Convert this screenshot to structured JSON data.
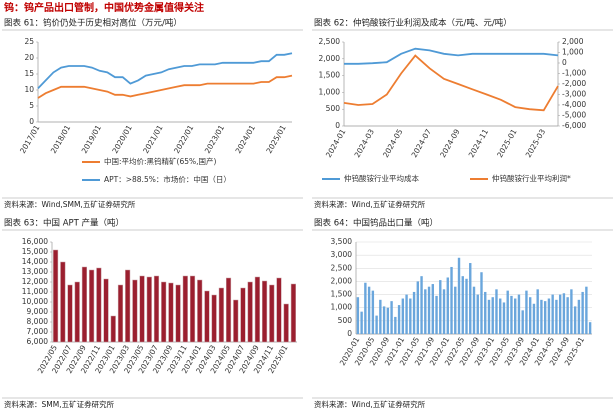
{
  "title": "钨：钨产品出口管制，中国优势金属值得关注",
  "chart_data": [
    {
      "type": "line",
      "title": "图表 61：钨价仍处于历史相对高位（万元/吨）",
      "source": "资料来源：Wind,SMM,五矿证券研究所",
      "categories": [
        "2017/01",
        null,
        null,
        null,
        "2018/01",
        null,
        null,
        null,
        "2019/01",
        null,
        null,
        null,
        "2020/01",
        null,
        null,
        null,
        "2021/01",
        null,
        null,
        null,
        "2022/01",
        null,
        null,
        null,
        "2023/01",
        null,
        null,
        null,
        "2024/01",
        null,
        null,
        null,
        "2025/01",
        null
      ],
      "series": [
        {
          "name": "中国:平均价:黑钨精矿(65%,国产)",
          "color": "#ed7d31",
          "values": [
            7.5,
            9,
            10,
            11,
            11,
            11,
            11,
            10.5,
            10,
            9.5,
            8.5,
            8.5,
            8,
            8.5,
            9,
            9.5,
            10,
            10.5,
            11,
            11.5,
            11.5,
            11.5,
            12,
            12,
            12,
            12,
            12,
            12,
            12,
            12.5,
            12.5,
            14,
            14,
            14.5
          ]
        },
        {
          "name": "APT：>88.5%：市场价：中国（日）",
          "color": "#4f9ad6",
          "values": [
            10.5,
            13,
            15.5,
            17,
            17.5,
            17.5,
            17.5,
            17,
            16,
            15.5,
            14,
            14,
            12,
            13,
            14.5,
            15,
            15.5,
            16.5,
            17,
            17.5,
            17.5,
            18,
            18,
            18,
            18.5,
            18.5,
            18.5,
            18.5,
            18.5,
            19,
            19,
            21,
            21,
            21.5
          ]
        }
      ],
      "ylim": [
        0,
        25
      ],
      "yticks": [
        0,
        5,
        10,
        15,
        20,
        25
      ],
      "grid": false
    },
    {
      "type": "line",
      "title": "图表 62：仲钨酸铵行业利润及成本（元/吨、元/吨）",
      "source": "资料来源：Wind,五矿证券研究所",
      "categories": [
        "2024-01",
        null,
        "2024-03",
        null,
        "2024-05",
        null,
        "2024-07",
        null,
        "2024-09",
        null,
        "2024-11",
        null,
        "2025-01",
        null,
        "2025-03",
        null
      ],
      "series": [
        {
          "name": "仲钨酸铵行业平均成本",
          "color": "#4f9ad6",
          "values": [
            1850,
            1850,
            1870,
            1900,
            2150,
            2300,
            2250,
            2150,
            2100,
            2150,
            2150,
            2150,
            2150,
            2150,
            2150,
            2100
          ]
        },
        {
          "name": "仲钨酸铵行业平均利润*",
          "color": "#ed7d31",
          "axis": "y2",
          "values": [
            -3800,
            -4000,
            -3900,
            -3000,
            -1000,
            700,
            -500,
            -1500,
            -2000,
            -2500,
            -3000,
            -3500,
            -4200,
            -4400,
            -4500,
            -2200
          ]
        }
      ],
      "ylim": [
        0,
        2500
      ],
      "yticks": [
        0,
        500,
        {
          "value": 1000,
          "label": "1,000"
        },
        {
          "value": 1500,
          "label": "1,500"
        },
        {
          "value": 2000,
          "label": "2,000"
        },
        {
          "value": 2500,
          "label": "2,500"
        }
      ],
      "y2lim": [
        -6000,
        2000
      ],
      "y2ticks": [
        {
          "value": -6000,
          "label": "-6,000"
        },
        {
          "value": -5000,
          "label": "-5,000"
        },
        {
          "value": -4000,
          "label": "-4,000"
        },
        {
          "value": -3000,
          "label": "-3,000"
        },
        {
          "value": -2000,
          "label": "-2,000"
        },
        {
          "value": -1000,
          "label": "-1,000"
        },
        0,
        {
          "value": 1000,
          "label": "1,000"
        },
        {
          "value": 2000,
          "label": "2,000"
        }
      ],
      "grid": false
    },
    {
      "type": "bar",
      "title": "图表 63：中国 APT 产量（吨）",
      "source": "资料来源：SMM,五矿证券研究所",
      "color": "#9b1f2f",
      "categories": [
        "2022/05",
        null,
        "2022/07",
        null,
        "2022/09",
        null,
        "2022/11",
        null,
        "2023/01",
        null,
        "2023/03",
        null,
        "2023/05",
        null,
        "2023/07",
        null,
        "2023/09",
        null,
        "2023/11",
        null,
        "2024/01",
        null,
        "2024/03",
        null,
        "2024/05",
        null,
        "2024/07",
        null,
        "2024/09",
        null,
        "2024/11",
        null,
        "2025/01",
        null
      ],
      "values": [
        15200,
        14000,
        11700,
        12000,
        13500,
        13200,
        13400,
        12300,
        8600,
        11700,
        13200,
        12200,
        12600,
        12500,
        12600,
        12000,
        11900,
        11700,
        12600,
        12600,
        12200,
        11100,
        10700,
        11400,
        12400,
        10200,
        11400,
        12000,
        12500,
        12100,
        11700,
        12400,
        9800,
        11800
      ],
      "ylim": [
        6000,
        16000
      ],
      "yticks": [
        {
          "value": 6000,
          "label": "6,000"
        },
        {
          "value": 7000,
          "label": "7,000"
        },
        {
          "value": 8000,
          "label": "8,000"
        },
        {
          "value": 9000,
          "label": "9,000"
        },
        {
          "value": 10000,
          "label": "10,000"
        },
        {
          "value": 11000,
          "label": "11,000"
        },
        {
          "value": 12000,
          "label": "12,000"
        },
        {
          "value": 13000,
          "label": "13,000"
        },
        {
          "value": 14000,
          "label": "14,000"
        },
        {
          "value": 15000,
          "label": "15,000"
        },
        {
          "value": 16000,
          "label": "16,000"
        }
      ],
      "grid": false
    },
    {
      "type": "bar",
      "title": "图表 64：中国钨品出口量（吨）",
      "source": "资料来源：Wind,五矿证券研究所",
      "color": "#6aa6dc",
      "categories": [
        "2020-01",
        null,
        null,
        null,
        "2020-05",
        null,
        null,
        null,
        "2020-09",
        null,
        null,
        null,
        "2021-01",
        null,
        null,
        null,
        "2021-05",
        null,
        null,
        null,
        "2021-09",
        null,
        null,
        null,
        "2022-01",
        null,
        null,
        null,
        "2022-05",
        null,
        null,
        null,
        "2022-09",
        null,
        null,
        null,
        "2023-01",
        null,
        null,
        null,
        "2023-05",
        null,
        null,
        null,
        "2023-09",
        null,
        null,
        null,
        "2024-01",
        null,
        null,
        null,
        "2024-05",
        null,
        null,
        null,
        "2024-09",
        null,
        null,
        null,
        "2025-01",
        null,
        null
      ],
      "values": [
        1400,
        850,
        1950,
        1800,
        1650,
        700,
        1300,
        1050,
        1000,
        1250,
        650,
        1100,
        1350,
        1500,
        1350,
        1600,
        2000,
        2200,
        1700,
        1800,
        1900,
        1450,
        2050,
        1700,
        2150,
        2550,
        1800,
        2900,
        2200,
        2100,
        2700,
        1800,
        1500,
        2350,
        1600,
        1300,
        1400,
        1700,
        1350,
        1200,
        1650,
        1450,
        1350,
        1500,
        900,
        1650,
        1400,
        1150,
        1700,
        1300,
        1250,
        1350,
        1500,
        1300,
        1500,
        1550,
        1400,
        1700,
        1050,
        1300,
        1600,
        1800,
        450
      ],
      "ylim": [
        0,
        3500
      ],
      "yticks": [
        0,
        500,
        {
          "value": 1000,
          "label": "1,000"
        },
        {
          "value": 1500,
          "label": "1,500"
        },
        {
          "value": 2000,
          "label": "2,000"
        },
        {
          "value": 2500,
          "label": "2,500"
        },
        {
          "value": 3000,
          "label": "3,000"
        },
        {
          "value": 3500,
          "label": "3,500"
        }
      ],
      "grid": true
    }
  ]
}
